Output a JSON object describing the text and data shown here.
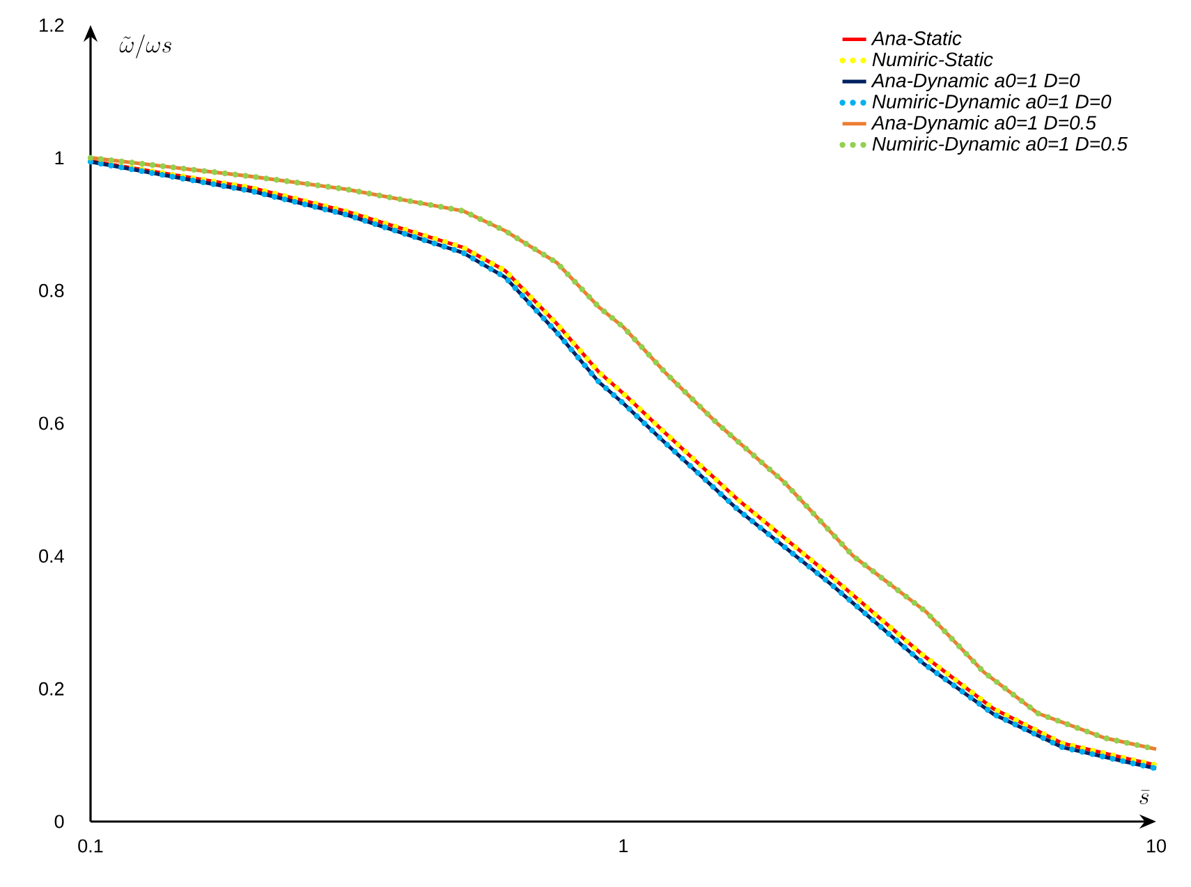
{
  "chart_data": {
    "type": "line",
    "xlabel": "\\bar{s}",
    "ylabel": "\\tilde{\\omega}/\\omega s",
    "log": "x",
    "xlim": [
      0.1,
      10
    ],
    "ylim": [
      0,
      1.2
    ],
    "xticks": [
      0.1,
      1,
      10
    ],
    "yticks": [
      0,
      0.2,
      0.4,
      0.6,
      0.8,
      1,
      1.2
    ],
    "grid": false,
    "legend": "top right",
    "series": [
      {
        "name": "Ana-Static",
        "color": "#ff0000",
        "line_style": "solid",
        "x": [
          0.1,
          0.2,
          0.3,
          0.5,
          0.6,
          0.75,
          0.9,
          1.0,
          1.2,
          1.64,
          2.45,
          3.66,
          4.95,
          6.66,
          9,
          10
        ],
        "values": [
          0.995,
          0.955,
          0.92,
          0.865,
          0.83,
          0.75,
          0.677,
          0.645,
          0.585,
          0.485,
          0.37,
          0.25,
          0.17,
          0.118,
          0.093,
          0.085
        ]
      },
      {
        "name": "Numiric-Static",
        "color": "#ffff00",
        "line_style": "dotted",
        "x": [
          0.1,
          0.2,
          0.3,
          0.5,
          0.6,
          0.75,
          0.9,
          1.0,
          1.2,
          1.64,
          2.45,
          3.66,
          4.95,
          6.66,
          9,
          10
        ],
        "values": [
          0.995,
          0.955,
          0.92,
          0.865,
          0.83,
          0.75,
          0.677,
          0.645,
          0.585,
          0.485,
          0.37,
          0.25,
          0.17,
          0.118,
          0.093,
          0.085
        ]
      },
      {
        "name": "Ana-Dynamic a0=1 D=0",
        "color": "#002060",
        "line_style": "solid",
        "x": [
          0.1,
          0.2,
          0.3,
          0.5,
          0.6,
          0.75,
          0.9,
          1.0,
          1.2,
          1.64,
          2.45,
          3.66,
          4.95,
          6.66,
          9,
          10
        ],
        "values": [
          0.994,
          0.95,
          0.915,
          0.857,
          0.82,
          0.737,
          0.662,
          0.63,
          0.57,
          0.47,
          0.358,
          0.238,
          0.162,
          0.112,
          0.088,
          0.08
        ]
      },
      {
        "name": "Numiric-Dynamic a0=1 D=0",
        "color": "#00b0f0",
        "line_style": "dotted",
        "x": [
          0.1,
          0.2,
          0.3,
          0.5,
          0.6,
          0.75,
          0.9,
          1.0,
          1.2,
          1.64,
          2.45,
          3.66,
          4.95,
          6.66,
          9,
          10
        ],
        "values": [
          0.994,
          0.95,
          0.915,
          0.857,
          0.82,
          0.737,
          0.662,
          0.63,
          0.57,
          0.47,
          0.358,
          0.238,
          0.162,
          0.112,
          0.088,
          0.08
        ]
      },
      {
        "name": "Ana-Dynamic a0=1 D=0.5",
        "color": "#ed7d31",
        "line_style": "solid",
        "x": [
          0.1,
          0.2,
          0.3,
          0.5,
          0.6,
          0.75,
          0.9,
          1.0,
          1.2,
          1.5,
          2,
          2.7,
          3.7,
          4.75,
          6,
          8,
          10
        ],
        "values": [
          1.0,
          0.972,
          0.953,
          0.92,
          0.89,
          0.842,
          0.775,
          0.745,
          0.676,
          0.6,
          0.512,
          0.4,
          0.316,
          0.225,
          0.163,
          0.126,
          0.109
        ]
      },
      {
        "name": "Numiric-Dynamic a0=1 D=0.5",
        "color": "#92d050",
        "line_style": "dotted",
        "x": [
          0.1,
          0.2,
          0.3,
          0.5,
          0.6,
          0.75,
          0.9,
          1.0,
          1.2,
          1.5,
          2,
          2.7,
          3.7,
          4.75,
          6,
          8,
          10
        ],
        "values": [
          1.0,
          0.972,
          0.953,
          0.92,
          0.89,
          0.842,
          0.775,
          0.745,
          0.676,
          0.6,
          0.512,
          0.4,
          0.316,
          0.225,
          0.163,
          0.126,
          0.109
        ]
      }
    ]
  }
}
